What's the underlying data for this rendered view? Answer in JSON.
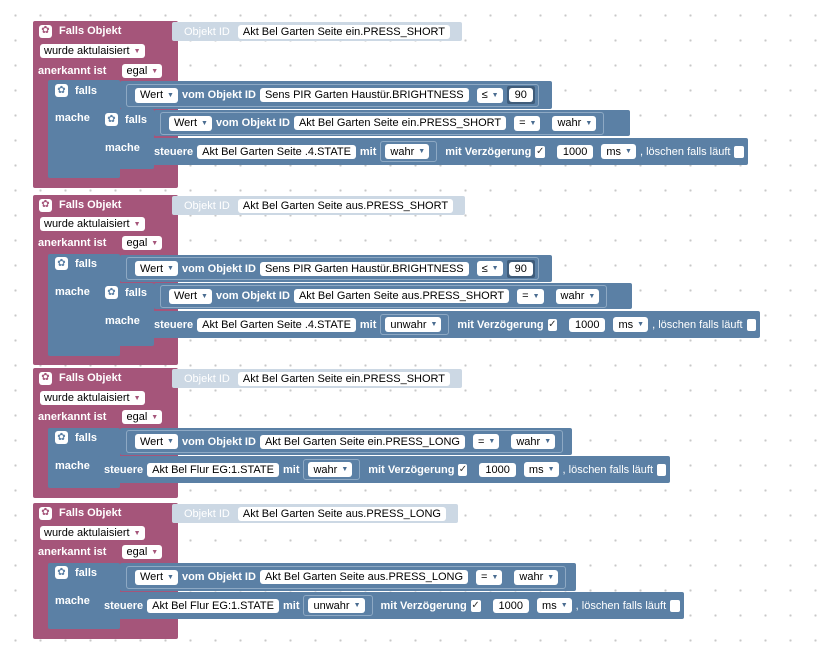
{
  "strings": {
    "event_title": "Falls Objekt",
    "object_id_label": "Objekt ID",
    "trigger_value": "wurde aktulaisiert",
    "ack_label": "anerkannt ist",
    "ack_value": "egal",
    "if_label": "falls",
    "do_label": "mache",
    "value_label": "Wert",
    "from_object": "vom Objekt ID",
    "control_label": "steuere",
    "with_label": "mit",
    "delay_label": "mit Verzögerung",
    "delay_value": "1000",
    "unit_value": "ms",
    "clear_label": ", löschen falls läuft",
    "checkmark": "✓"
  },
  "events": [
    {
      "object_id": "Akt Bel Garten Seite ein.PRESS_SHORT",
      "outer_condition": {
        "object": "Sens PIR Garten Haustür.BRIGHTNESS",
        "op": "≤",
        "value": "90"
      },
      "inner_condition": {
        "object": "Akt Bel Garten Seite ein.PRESS_SHORT",
        "op": "=",
        "value": "wahr"
      },
      "action": {
        "target": "Akt Bel Garten Seite .4.STATE",
        "value": "wahr"
      }
    },
    {
      "object_id": "Akt Bel Garten Seite aus.PRESS_SHORT",
      "outer_condition": {
        "object": "Sens PIR Garten Haustür.BRIGHTNESS",
        "op": "≤",
        "value": "90"
      },
      "inner_condition": {
        "object": "Akt Bel Garten Seite aus.PRESS_SHORT",
        "op": "=",
        "value": "wahr"
      },
      "action": {
        "target": "Akt Bel Garten Seite .4.STATE",
        "value": "unwahr"
      }
    },
    {
      "object_id": "Akt Bel Garten Seite ein.PRESS_SHORT",
      "condition": {
        "object": "Akt Bel Garten Seite ein.PRESS_LONG",
        "op": "=",
        "value": "wahr"
      },
      "action": {
        "target": "Akt Bel Flur EG:1.STATE",
        "value": "wahr"
      }
    },
    {
      "object_id": "Akt Bel Garten Seite aus.PRESS_LONG",
      "condition": {
        "object": "Akt Bel Garten Seite aus.PRESS_LONG",
        "op": "=",
        "value": "wahr"
      },
      "action": {
        "target": "Akt Bel Flur EG:1.STATE",
        "value": "unwahr"
      }
    }
  ],
  "icons": {
    "block_icon": "gear-icon",
    "dropdown": "chevron-down-icon"
  },
  "colors": {
    "event_block": "#a5557a",
    "logic_block": "#5b80a5",
    "object_id_block": "#ccd8e4"
  }
}
